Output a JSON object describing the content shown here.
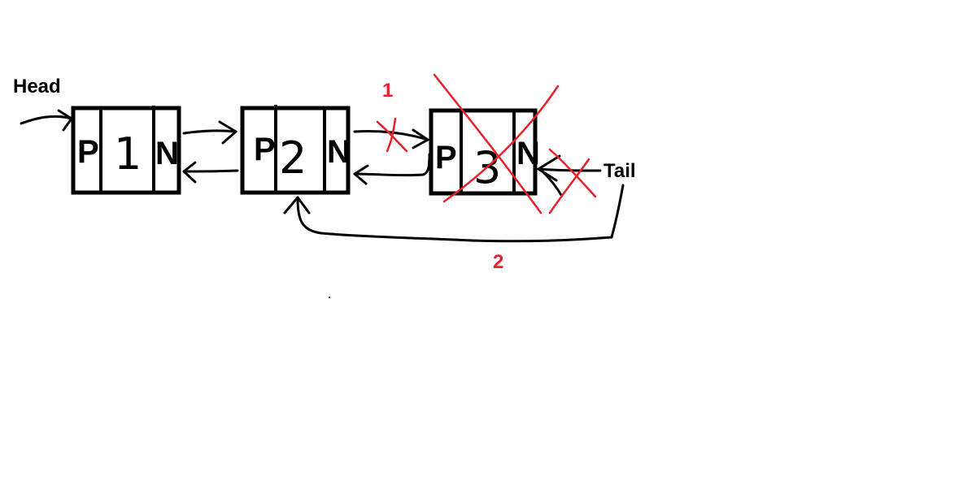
{
  "colors": {
    "ink": "#000000",
    "annotation": "#e8202a",
    "background": "#ffffff"
  },
  "labels": {
    "head": "Head",
    "tail": "Tail"
  },
  "nodes": [
    {
      "prev": "P",
      "value": "1",
      "next": "N",
      "deleted": false
    },
    {
      "prev": "P",
      "value": "2",
      "next": "N",
      "deleted": false
    },
    {
      "prev": "P",
      "value": "3",
      "next": "N",
      "deleted": true
    }
  ],
  "annotations": {
    "step_1": "1",
    "step_2": "2"
  }
}
